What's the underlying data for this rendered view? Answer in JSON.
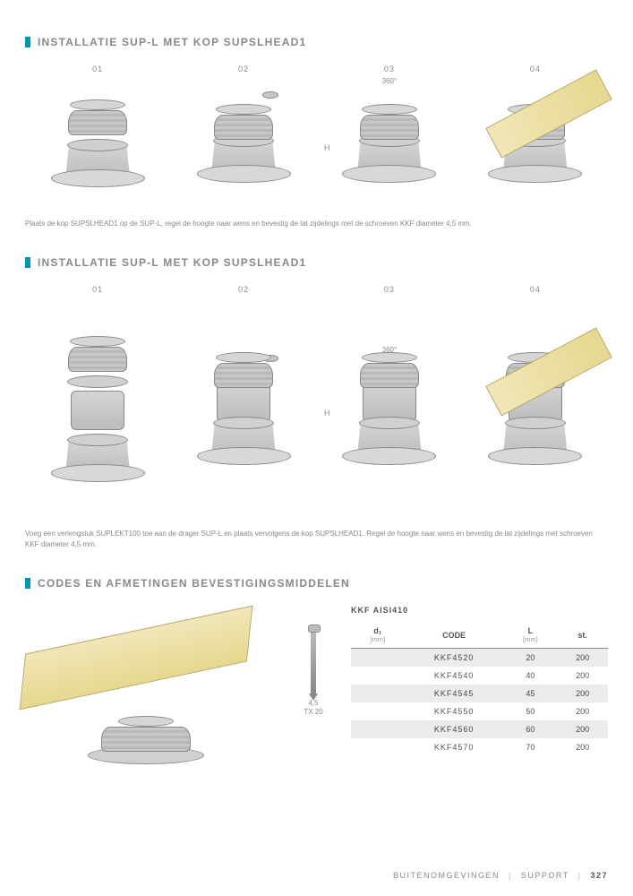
{
  "section1": {
    "title": "INSTALLATIE SUP-L MET KOP SUPSLHEAD1",
    "steps": [
      "01",
      "02",
      "03",
      "04"
    ],
    "rotation": "360°",
    "height_label": "H",
    "caption": "Plaats de kop SUPSLHEAD1 op de SUP-L, regel de hoogte naar wens en bevestig de lat zijdelings met de schroeven KKF diameter 4,5 mm."
  },
  "section2": {
    "title": "INSTALLATIE SUP-L MET KOP SUPSLHEAD1",
    "steps": [
      "01",
      "02",
      "03",
      "04"
    ],
    "rotation": "360°",
    "height_label": "H",
    "caption": "Voeg een verlengstuk SUPLEKT100 toe aan de drager SUP-L en plaats vervolgens de kop SUPSLHEAD1. Regel de hoogte naar wens en bevestig de lat zijdelings met schroeven KKF diameter 4,5 mm."
  },
  "section3": {
    "title": "CODES EN AFMETINGEN BEVESTIGINGSMIDDELEN",
    "screw_name": "KKF AISI410",
    "screw_size": "4,5",
    "screw_drive": "TX 20",
    "table": {
      "columns": [
        {
          "key": "d1",
          "label": "d₁",
          "unit": "[mm]"
        },
        {
          "key": "code",
          "label": "CODE",
          "unit": ""
        },
        {
          "key": "L",
          "label": "L",
          "unit": "[mm]"
        },
        {
          "key": "st",
          "label": "st.",
          "unit": ""
        }
      ],
      "rows": [
        {
          "code": "KKF4520",
          "L": "20",
          "st": "200"
        },
        {
          "code": "KKF4540",
          "L": "40",
          "st": "200"
        },
        {
          "code": "KKF4545",
          "L": "45",
          "st": "200"
        },
        {
          "code": "KKF4550",
          "L": "50",
          "st": "200"
        },
        {
          "code": "KKF4560",
          "L": "60",
          "st": "200"
        },
        {
          "code": "KKF4570",
          "L": "70",
          "st": "200"
        }
      ]
    }
  },
  "footer": {
    "cat": "BUITENOMGEVINGEN",
    "sub": "SUPPORT",
    "page": "327"
  },
  "colors": {
    "accent": "#0097b2",
    "text": "#888",
    "beam": "#e6d88f",
    "stripe": "#ececec"
  }
}
